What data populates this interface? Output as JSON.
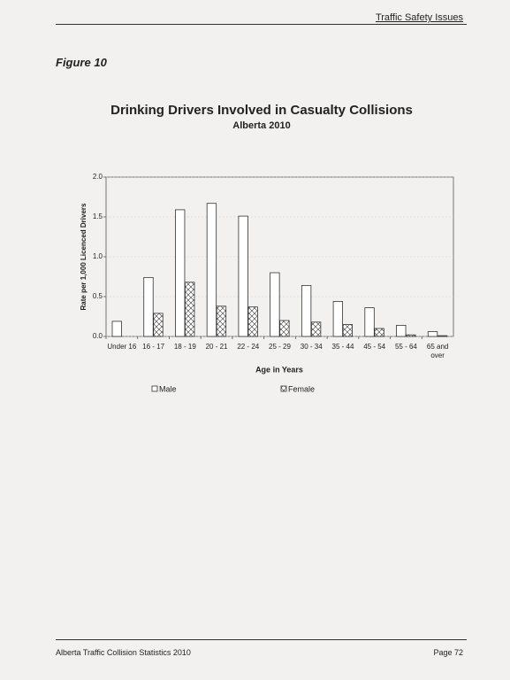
{
  "header": {
    "section": "Traffic Safety Issues"
  },
  "figure_label": "Figure 10",
  "chart_data": {
    "type": "bar",
    "title": "Drinking Drivers Involved in Casualty Collisions",
    "subtitle": "Alberta 2010",
    "x_label": "Age in Years",
    "y_label": "Rate per 1,000 Licenced Drivers",
    "categories": [
      "Under 16",
      "16 - 17",
      "18 - 19",
      "20 - 21",
      "22 - 24",
      "25 - 29",
      "30 - 34",
      "35 - 44",
      "45 - 54",
      "55 - 64",
      "65 and over"
    ],
    "series": [
      {
        "name": "Male",
        "color": "#ffffff",
        "values": [
          0.19,
          0.74,
          1.59,
          1.67,
          1.51,
          0.8,
          0.64,
          0.44,
          0.36,
          0.14,
          0.06
        ]
      },
      {
        "name": "Female",
        "color": "hatch",
        "values": [
          0,
          0.29,
          0.68,
          0.38,
          0.37,
          0.2,
          0.18,
          0.15,
          0.1,
          0.02,
          0.01
        ]
      }
    ],
    "ylim": [
      0,
      2
    ],
    "yticks": [
      {
        "value": 0,
        "label": "0.0"
      },
      {
        "value": 0.5,
        "label": "0.5"
      },
      {
        "value": 1,
        "label": "1.0"
      },
      {
        "value": 1.5,
        "label": "1.5"
      },
      {
        "value": 2,
        "label": "2.0"
      }
    ],
    "grid": true,
    "legend": "bottom"
  },
  "footer": {
    "left": "Alberta Traffic Collision Statistics 2010",
    "right": "Page 72"
  }
}
